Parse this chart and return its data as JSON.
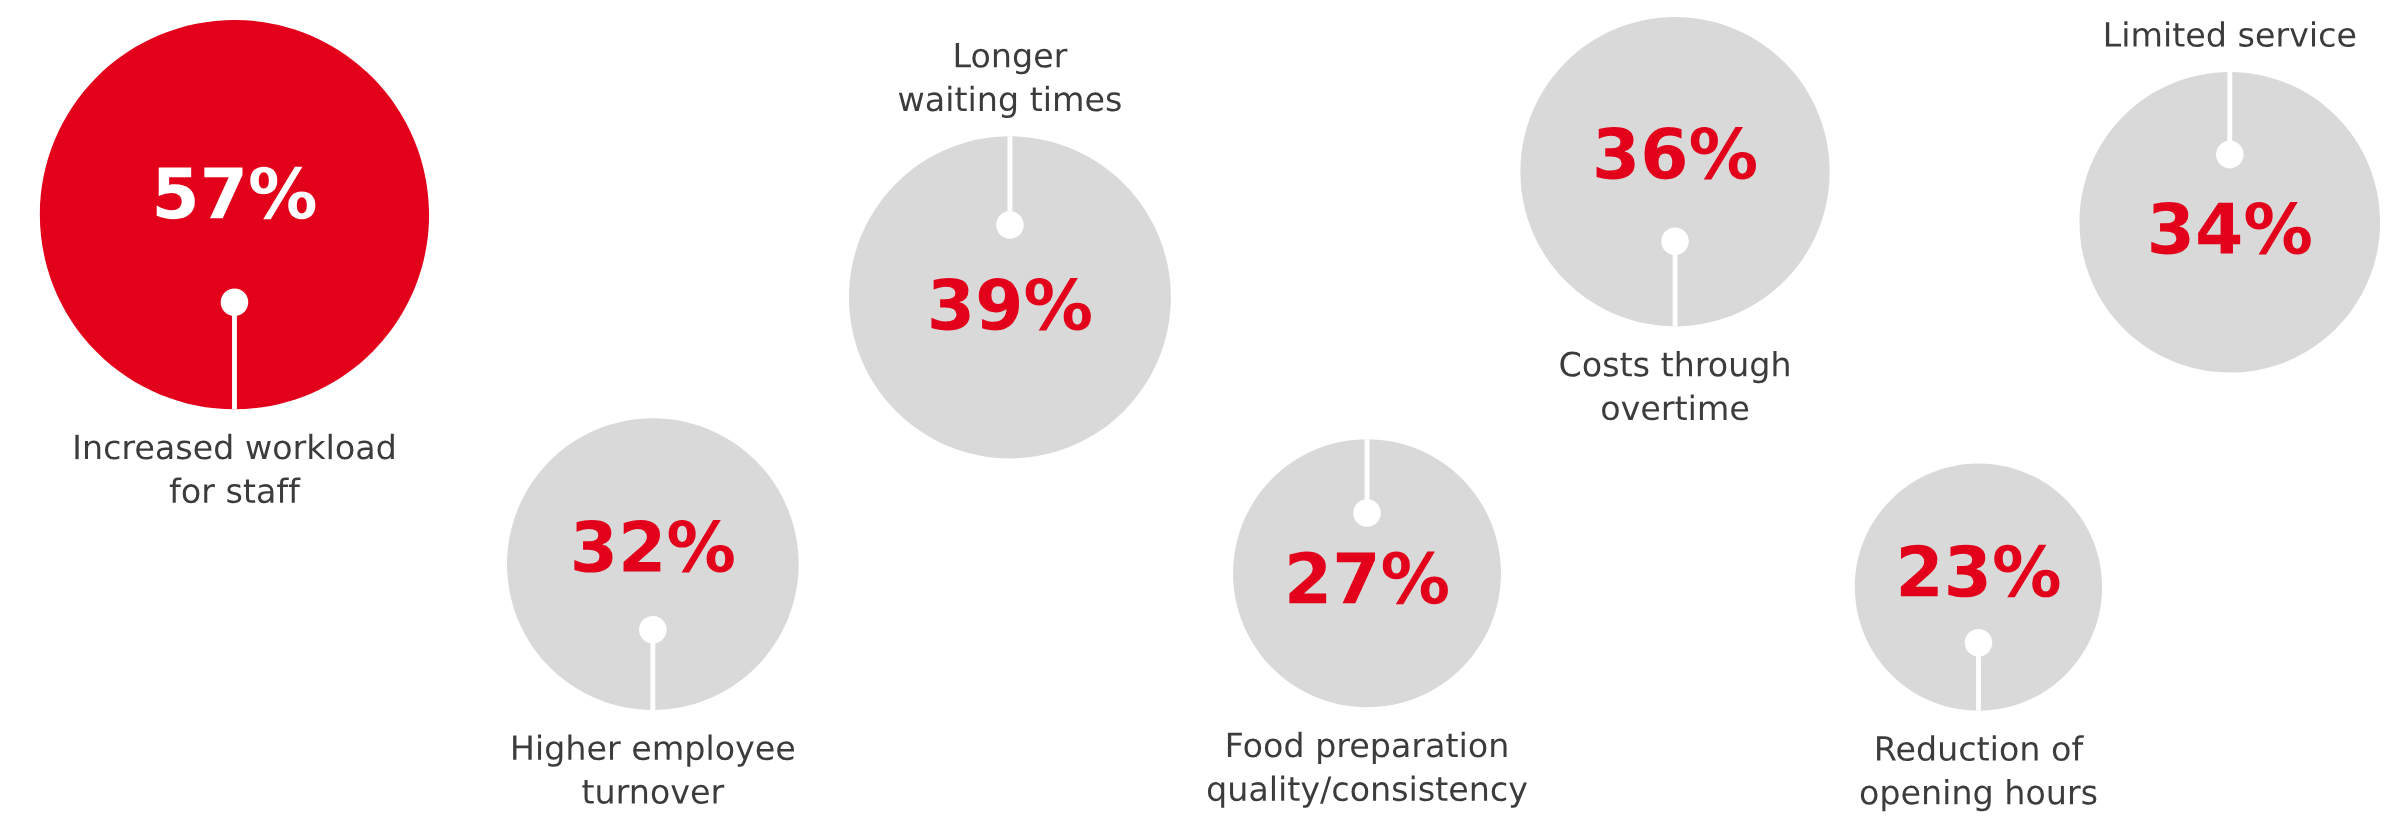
{
  "chart_data": {
    "type": "other",
    "categories": [
      "Increased workload\nfor staff",
      "Higher employee\nturnover",
      "Longer\nwaiting times",
      "Food preparation\nquality/consistency",
      "Costs through\novertime",
      "Reduction of\nopening hours",
      "Limited service"
    ],
    "values": [
      57,
      32,
      39,
      27,
      36,
      23,
      34
    ],
    "colors": [
      "#e2001a",
      "#d9d9d9",
      "#d9d9d9",
      "#d9d9d9",
      "#d9d9d9",
      "#d9d9d9",
      "#d9d9d9"
    ],
    "value_labels": [
      "57%",
      "32%",
      "39%",
      "27%",
      "36%",
      "23%",
      "34%"
    ]
  }
}
